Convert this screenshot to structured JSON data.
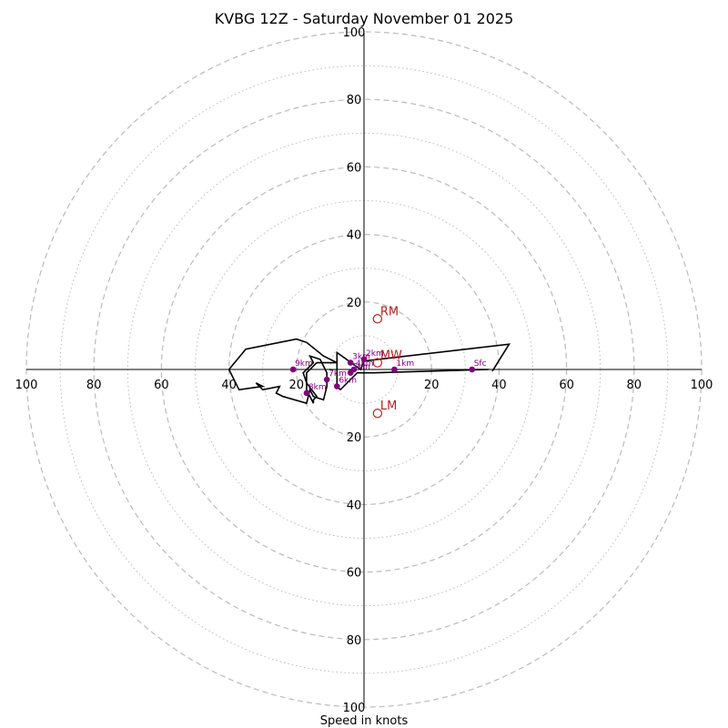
{
  "chart_data": {
    "type": "hodograph",
    "title": "KVBG 12Z - Saturday November 01 2025",
    "xlabel": "Speed in knots",
    "range": [
      -100,
      100
    ],
    "ring_major": [
      20,
      40,
      60,
      80,
      100
    ],
    "ring_minor": [
      10,
      30,
      50,
      70,
      90
    ],
    "tick_labels": [
      "100",
      "80",
      "60",
      "40",
      "20"
    ],
    "colors": {
      "grid": "#bbbbbb",
      "trace": "#000000",
      "height_marker": "#800080",
      "motion": "#b22222"
    },
    "trace": [
      [
        38,
        -0.5
      ],
      [
        43,
        7.5
      ],
      [
        0,
        2.5
      ],
      [
        -1,
        0
      ],
      [
        -8,
        5
      ],
      [
        -8,
        2
      ],
      [
        -12,
        4
      ],
      [
        -17,
        8
      ],
      [
        -20,
        9
      ],
      [
        -35,
        6
      ],
      [
        -40,
        0
      ],
      [
        -37,
        -6
      ],
      [
        -30,
        -5
      ],
      [
        -32,
        -4
      ],
      [
        -30,
        -6
      ],
      [
        -25,
        -5
      ],
      [
        -26,
        -7
      ],
      [
        -24,
        -8
      ],
      [
        -17,
        -10
      ],
      [
        -16,
        -6
      ],
      [
        -15,
        -8
      ],
      [
        -12,
        -9
      ],
      [
        -11,
        -5
      ],
      [
        -11,
        -1
      ],
      [
        -13,
        3
      ],
      [
        -16,
        4
      ],
      [
        -15,
        2
      ],
      [
        -18,
        -1
      ],
      [
        -17,
        -4
      ],
      [
        -14,
        -8
      ],
      [
        -15,
        -9
      ],
      [
        -15,
        -10
      ],
      [
        -17,
        -6
      ],
      [
        -17,
        -1
      ],
      [
        -14,
        2
      ],
      [
        -8,
        2
      ],
      [
        -8,
        -5
      ],
      [
        -7,
        -6
      ],
      [
        -2,
        -1
      ],
      [
        3,
        -1
      ],
      [
        37,
        0
      ],
      [
        33,
        0
      ]
    ],
    "height_markers": [
      {
        "label": "Sfc",
        "u": 32,
        "v": 0
      },
      {
        "label": "1km",
        "u": 9,
        "v": 0
      },
      {
        "label": "2km",
        "u": 0,
        "v": 3
      },
      {
        "label": "3km",
        "u": -4,
        "v": 2
      },
      {
        "label": "4km",
        "u": -3,
        "v": 0
      },
      {
        "label": "5km",
        "u": -4,
        "v": -1
      },
      {
        "label": "6km",
        "u": -8,
        "v": -5
      },
      {
        "label": "7km",
        "u": -11,
        "v": -3
      },
      {
        "label": "8km",
        "u": -17,
        "v": -7
      },
      {
        "label": "9km",
        "u": -21,
        "v": 0
      }
    ],
    "storm_motion": [
      {
        "label": "RM",
        "u": 4,
        "v": 15
      },
      {
        "label": "MW",
        "u": 4,
        "v": 2
      },
      {
        "label": "LM",
        "u": 4,
        "v": -13
      }
    ]
  }
}
